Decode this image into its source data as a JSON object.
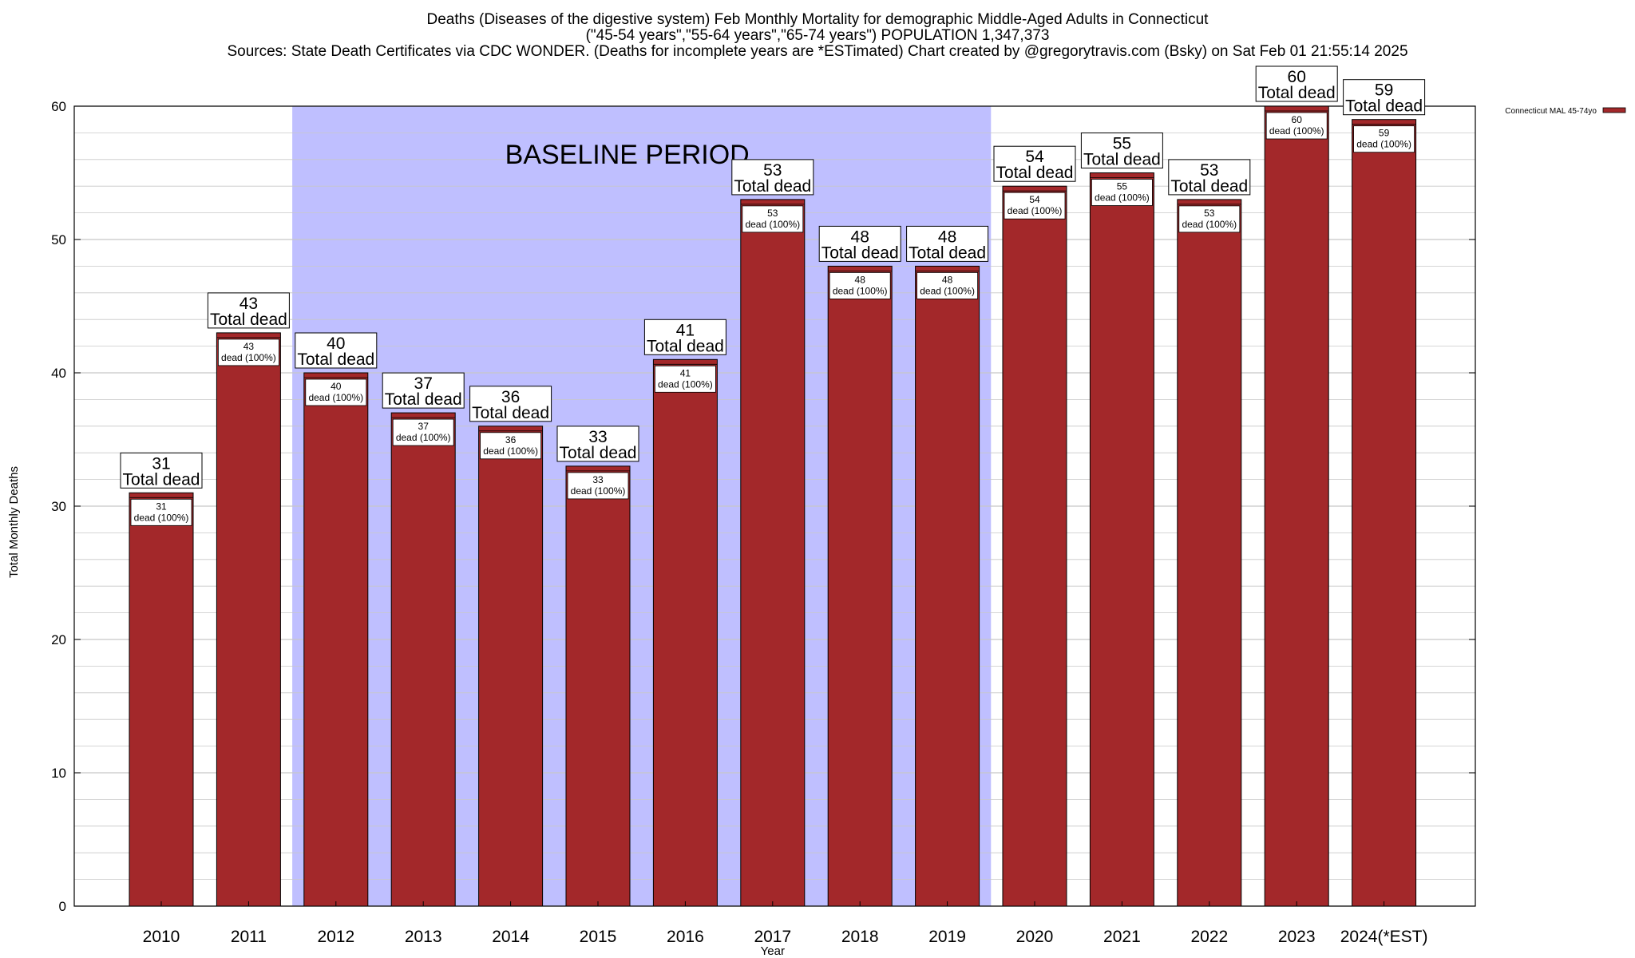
{
  "chart_data": {
    "type": "bar",
    "title_lines": [
      "Deaths (Diseases of the digestive system) Feb Monthly Mortality for demographic Middle-Aged Adults in Connecticut",
      "(\"45-54 years\",\"55-64 years\",\"65-74 years\") POPULATION 1,347,373",
      "Sources: State Death Certificates via CDC WONDER. (Deaths for incomplete years are *ESTimated)                Chart created by @gregorytravis.com (Bsky) on Sat Feb 01 21:55:14 2025"
    ],
    "xlabel": "Year",
    "ylabel": "Total Monthly Deaths",
    "ylim": [
      0,
      60
    ],
    "y_major_ticks": [
      0,
      10,
      20,
      30,
      40,
      50,
      60
    ],
    "y_minor_step": 2,
    "grid": true,
    "legend": {
      "position": "top-right",
      "entries": [
        "Connecticut MAL 45-74yo"
      ]
    },
    "categories": [
      "2010",
      "2011",
      "2012",
      "2013",
      "2014",
      "2015",
      "2016",
      "2017",
      "2018",
      "2019",
      "2020",
      "2021",
      "2022",
      "2023",
      "2024(*EST)"
    ],
    "series": [
      {
        "name": "Connecticut MAL 45-74yo",
        "values": [
          31,
          43,
          40,
          37,
          36,
          33,
          41,
          53,
          48,
          48,
          54,
          55,
          53,
          60,
          59
        ]
      }
    ],
    "total_label_text": "Total dead",
    "inner_label_text": "dead (100%)",
    "baseline_period": {
      "label": "BASELINE PERIOD",
      "start": "2012",
      "end": "2019"
    },
    "colors": {
      "bar": "#a3282a",
      "baseline": "#bfbfff",
      "grid": "#c8c8c8"
    }
  }
}
